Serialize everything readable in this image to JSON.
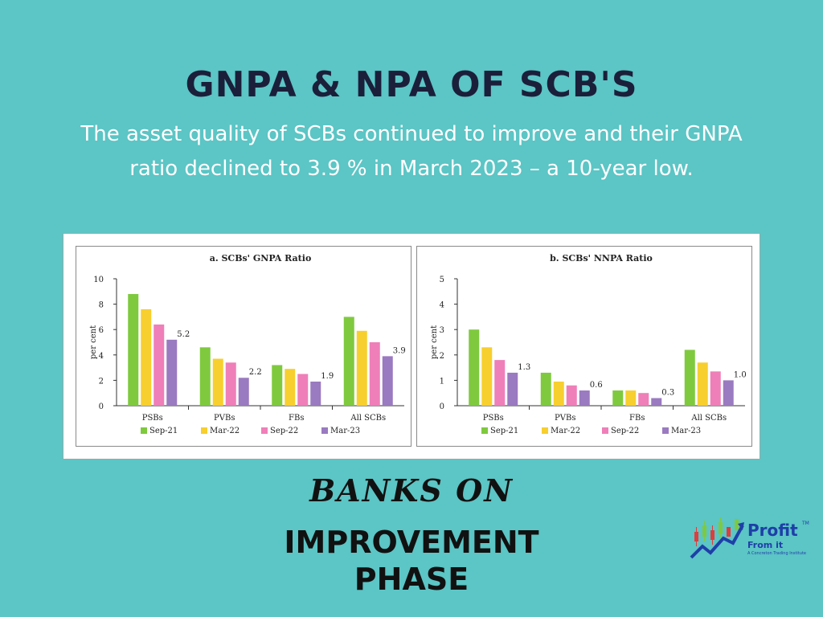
{
  "header": {
    "title": "GNPA & NPA OF SCB'S",
    "subtitle": "The asset quality of SCBs continued to improve and their GNPA ratio declined to 3.9 % in March 2023 – a 10-year low."
  },
  "footer": {
    "banks_on": "BANKS ON",
    "improvement": "IMPROVEMENT PHASE"
  },
  "logo": {
    "word": "Profit",
    "sub": "From it",
    "tagline": "A Concreton Trading Institute",
    "tm": "TM"
  },
  "colors": {
    "Sep-21": "#7fc93f",
    "Mar-22": "#f7cf2e",
    "Sep-22": "#ef7fb8",
    "Mar-23": "#9a7ac0"
  },
  "chart_data": [
    {
      "type": "bar",
      "title": "a. SCBs' GNPA Ratio",
      "ylabel": "per cent",
      "ylim": [
        0,
        10
      ],
      "yticks": [
        0,
        2,
        4,
        6,
        8,
        10
      ],
      "categories": [
        "PSBs",
        "PVBs",
        "FBs",
        "All SCBs"
      ],
      "series": [
        {
          "name": "Sep-21",
          "values": [
            8.8,
            4.6,
            3.2,
            7.0
          ]
        },
        {
          "name": "Mar-22",
          "values": [
            7.6,
            3.7,
            2.9,
            5.9
          ]
        },
        {
          "name": "Sep-22",
          "values": [
            6.4,
            3.4,
            2.5,
            5.0
          ]
        },
        {
          "name": "Mar-23",
          "values": [
            5.2,
            2.2,
            1.9,
            3.9
          ]
        }
      ],
      "data_labels": [
        "5.2",
        "2.2",
        "1.9",
        "3.9"
      ],
      "legend": "bottom"
    },
    {
      "type": "bar",
      "title": "b. SCBs' NNPA Ratio",
      "ylabel": "per cent",
      "ylim": [
        0,
        5
      ],
      "yticks": [
        0,
        1,
        2,
        3,
        4,
        5
      ],
      "categories": [
        "PSBs",
        "PVBs",
        "FBs",
        "All SCBs"
      ],
      "series": [
        {
          "name": "Sep-21",
          "values": [
            3.0,
            1.3,
            0.6,
            2.2
          ]
        },
        {
          "name": "Mar-22",
          "values": [
            2.3,
            0.95,
            0.6,
            1.7
          ]
        },
        {
          "name": "Sep-22",
          "values": [
            1.8,
            0.8,
            0.5,
            1.35
          ]
        },
        {
          "name": "Mar-23",
          "values": [
            1.3,
            0.6,
            0.3,
            1.0
          ]
        }
      ],
      "data_labels": [
        "1.3",
        "0.6",
        "0.3",
        "1.0"
      ],
      "legend": "bottom"
    }
  ]
}
